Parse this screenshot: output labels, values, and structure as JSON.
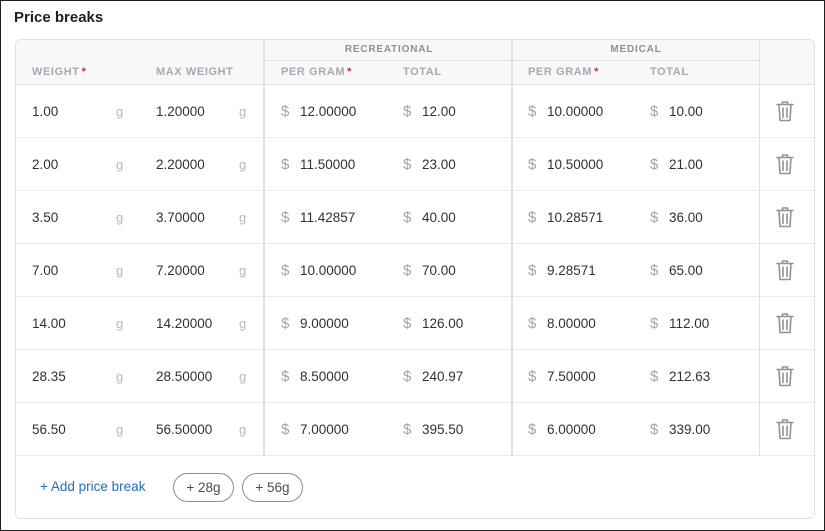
{
  "title": "Price breaks",
  "groups": {
    "recreational": "RECREATIONAL",
    "medical": "MEDICAL"
  },
  "columns": {
    "weight": "WEIGHT",
    "max_weight": "MAX WEIGHT",
    "rec_per_gram": "PER GRAM",
    "rec_total": "TOTAL",
    "med_per_gram": "PER GRAM",
    "med_total": "TOTAL",
    "required_mark": "*"
  },
  "units": {
    "weight": "g",
    "currency": "$"
  },
  "rows": [
    {
      "weight": "1.00",
      "max_weight": "1.20000",
      "rec_per_gram": "12.00000",
      "rec_total": "12.00",
      "med_per_gram": "10.00000",
      "med_total": "10.00"
    },
    {
      "weight": "2.00",
      "max_weight": "2.20000",
      "rec_per_gram": "11.50000",
      "rec_total": "23.00",
      "med_per_gram": "10.50000",
      "med_total": "21.00"
    },
    {
      "weight": "3.50",
      "max_weight": "3.70000",
      "rec_per_gram": "11.42857",
      "rec_total": "40.00",
      "med_per_gram": "10.28571",
      "med_total": "36.00"
    },
    {
      "weight": "7.00",
      "max_weight": "7.20000",
      "rec_per_gram": "10.00000",
      "rec_total": "70.00",
      "med_per_gram": "9.28571",
      "med_total": "65.00"
    },
    {
      "weight": "14.00",
      "max_weight": "14.20000",
      "rec_per_gram": "9.00000",
      "rec_total": "126.00",
      "med_per_gram": "8.00000",
      "med_total": "112.00"
    },
    {
      "weight": "28.35",
      "max_weight": "28.50000",
      "rec_per_gram": "8.50000",
      "rec_total": "240.97",
      "med_per_gram": "7.50000",
      "med_total": "212.63"
    },
    {
      "weight": "56.50",
      "max_weight": "56.50000",
      "rec_per_gram": "7.00000",
      "rec_total": "395.50",
      "med_per_gram": "6.00000",
      "med_total": "339.00"
    }
  ],
  "footer": {
    "add_label": "+ Add price break",
    "chips": [
      "+ 28g",
      "+ 56g"
    ]
  },
  "icons": {
    "delete": "trash-icon"
  },
  "colors": {
    "link": "#1f6fc5",
    "required": "#d8262d"
  }
}
